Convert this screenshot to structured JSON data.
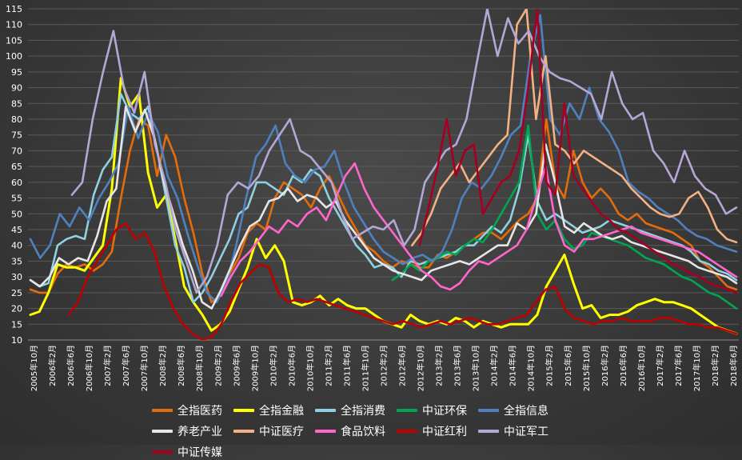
{
  "chart_data": {
    "type": "line",
    "title": "",
    "xlabel": "",
    "ylabel": "",
    "ylim": [
      10,
      115
    ],
    "yticks": [
      10,
      15,
      20,
      25,
      30,
      35,
      40,
      45,
      50,
      55,
      60,
      65,
      70,
      75,
      80,
      85,
      90,
      95,
      100,
      105,
      110,
      115
    ],
    "xticks": [
      "2005年10月",
      "2006年2月",
      "2006年6月",
      "2006年10月",
      "2007年2月",
      "2007年6月",
      "2007年10月",
      "2008年2月",
      "2008年6月",
      "2008年10月",
      "2009年2月",
      "2009年6月",
      "2009年10月",
      "2010年2月",
      "2010年6月",
      "2010年10月",
      "2011年2月",
      "2011年6月",
      "2011年10月",
      "2012年2月",
      "2012年6月",
      "2012年10月",
      "2013年2月",
      "2013年6月",
      "2013年10月",
      "2014年2月",
      "2014年6月",
      "2014年10月",
      "2015年2月",
      "2015年6月",
      "2015年10月",
      "2016年2月",
      "2016年6月",
      "2016年10月",
      "2017年2月",
      "2017年6月",
      "2017年10月",
      "2018年2月",
      "2018年6月"
    ],
    "grid": true,
    "legend_position": "bottom",
    "series": [
      {
        "name": "全指医药",
        "color": "#e46c0a",
        "values": [
          26,
          25,
          25,
          31,
          34,
          33,
          34,
          32,
          34,
          38,
          55,
          70,
          80,
          78,
          62,
          75,
          68,
          55,
          44,
          31,
          22,
          24,
          31,
          36,
          44,
          47,
          45,
          55,
          60,
          58,
          56,
          52,
          58,
          62,
          56,
          50,
          45,
          40,
          38,
          35,
          33,
          35,
          34,
          33,
          33,
          37,
          36,
          38,
          40,
          42,
          44,
          44,
          42,
          45,
          48,
          50,
          55,
          80,
          60,
          55,
          70,
          60,
          55,
          58,
          55,
          50,
          48,
          50,
          47,
          46,
          45,
          44,
          42,
          40,
          35,
          33,
          30,
          27,
          26
        ]
      },
      {
        "name": "全指金融",
        "color": "#ffff00",
        "values": [
          18,
          19,
          25,
          34,
          33,
          33,
          32,
          36,
          40,
          58,
          93,
          84,
          88,
          63,
          52,
          56,
          42,
          27,
          22,
          18,
          13,
          15,
          19,
          26,
          33,
          42,
          36,
          40,
          35,
          22,
          21,
          22,
          24,
          21,
          23,
          21,
          20,
          20,
          18,
          16,
          15,
          14,
          18,
          16,
          15,
          16,
          15,
          17,
          16,
          14,
          16,
          15,
          14,
          15,
          15,
          15,
          18,
          27,
          32,
          37,
          28,
          20,
          21,
          17,
          18,
          18,
          19,
          21,
          22,
          23,
          22,
          22,
          21,
          20,
          18,
          16,
          14,
          13,
          12
        ]
      },
      {
        "name": "全指消费",
        "color": "#8fd1e0",
        "values": [
          29,
          27,
          28,
          40,
          42,
          43,
          42,
          56,
          64,
          68,
          88,
          82,
          80,
          84,
          70,
          55,
          40,
          33,
          22,
          25,
          30,
          36,
          42,
          50,
          52,
          60,
          60,
          58,
          56,
          62,
          60,
          64,
          62,
          55,
          50,
          45,
          40,
          37,
          33,
          34,
          33,
          30,
          35,
          34,
          35,
          36,
          37,
          38,
          40,
          40,
          43,
          46,
          44,
          48,
          58,
          75,
          54,
          48,
          50,
          48,
          46,
          44,
          45,
          46,
          48,
          47,
          46,
          45,
          44,
          43,
          42,
          41,
          40,
          38,
          35,
          34,
          32,
          31,
          29
        ]
      },
      {
        "name": "中证环保",
        "color": "#00a651",
        "values": [
          null,
          null,
          null,
          null,
          null,
          null,
          null,
          null,
          null,
          null,
          null,
          null,
          null,
          null,
          null,
          null,
          null,
          null,
          null,
          null,
          null,
          null,
          null,
          null,
          null,
          null,
          null,
          null,
          null,
          null,
          null,
          null,
          null,
          null,
          null,
          null,
          null,
          null,
          null,
          null,
          29,
          31,
          34,
          32,
          35,
          36,
          38,
          37,
          40,
          42,
          41,
          45,
          50,
          55,
          60,
          78,
          50,
          45,
          48,
          42,
          39,
          40,
          44,
          43,
          42,
          41,
          40,
          38,
          36,
          35,
          34,
          32,
          30,
          29,
          27,
          25,
          24,
          22,
          20
        ]
      },
      {
        "name": "全指信息",
        "color": "#4f81bd",
        "values": [
          42,
          36,
          40,
          50,
          46,
          52,
          48,
          55,
          60,
          66,
          84,
          74,
          82,
          76,
          62,
          55,
          44,
          34,
          25,
          22,
          28,
          40,
          55,
          68,
          72,
          78,
          66,
          62,
          60,
          64,
          65,
          70,
          60,
          52,
          47,
          42,
          38,
          36,
          34,
          36,
          37,
          35,
          38,
          45,
          55,
          60,
          58,
          62,
          68,
          75,
          78,
          100,
          113,
          80,
          75,
          85,
          80,
          90,
          80,
          76,
          70,
          60,
          57,
          55,
          52,
          50,
          48,
          45,
          43,
          42,
          40,
          39,
          38
        ]
      },
      {
        "name": "养老产业",
        "color": "#e6e6e6",
        "values": [
          29,
          27,
          30,
          36,
          34,
          36,
          35,
          43,
          54,
          58,
          84,
          76,
          83,
          74,
          60,
          50,
          40,
          32,
          22,
          20,
          26,
          33,
          40,
          46,
          48,
          54,
          55,
          58,
          54,
          56,
          55,
          52,
          54,
          48,
          44,
          40,
          36,
          34,
          32,
          31,
          30,
          29,
          32,
          33,
          34,
          35,
          34,
          36,
          38,
          40,
          40,
          47,
          45,
          50,
          72,
          60,
          46,
          44,
          47,
          45,
          43,
          42,
          43,
          41,
          40,
          39,
          38,
          37,
          36,
          35,
          33,
          32,
          31,
          30,
          28
        ]
      },
      {
        "name": "中证医疗",
        "color": "#f4b183",
        "values": [
          null,
          null,
          null,
          null,
          null,
          null,
          null,
          null,
          null,
          null,
          null,
          null,
          null,
          null,
          null,
          null,
          null,
          null,
          null,
          null,
          null,
          null,
          null,
          null,
          null,
          null,
          null,
          null,
          null,
          null,
          null,
          null,
          null,
          null,
          null,
          null,
          null,
          null,
          null,
          null,
          40,
          44,
          50,
          58,
          62,
          66,
          60,
          64,
          68,
          72,
          75,
          110,
          115,
          80,
          100,
          72,
          70,
          66,
          70,
          68,
          66,
          64,
          62,
          58,
          55,
          52,
          50,
          49,
          50,
          55,
          57,
          52,
          45,
          42,
          41
        ]
      },
      {
        "name": "食品饮料",
        "color": "#ff66cc",
        "values": [
          null,
          null,
          null,
          null,
          null,
          null,
          null,
          null,
          null,
          null,
          null,
          null,
          null,
          null,
          null,
          null,
          null,
          null,
          null,
          null,
          24,
          30,
          35,
          38,
          42,
          46,
          44,
          48,
          46,
          50,
          52,
          48,
          55,
          62,
          66,
          58,
          52,
          48,
          44,
          40,
          36,
          32,
          30,
          27,
          26,
          28,
          32,
          35,
          34,
          36,
          38,
          40,
          45,
          55,
          65,
          48,
          40,
          38,
          42,
          42,
          43,
          44,
          45,
          46,
          44,
          43,
          42,
          41,
          40,
          39,
          38,
          36,
          34,
          32,
          30
        ]
      },
      {
        "name": "中证红利",
        "color": "#c00000",
        "values": [
          null,
          null,
          null,
          null,
          18,
          22,
          30,
          35,
          40,
          45,
          47,
          42,
          44,
          38,
          27,
          20,
          15,
          12,
          10,
          11,
          15,
          22,
          28,
          31,
          34,
          33,
          25,
          22,
          23,
          22,
          23,
          22,
          21,
          20,
          19,
          18,
          17,
          16,
          15,
          16,
          15,
          14,
          15,
          16,
          15,
          16,
          17,
          16,
          15,
          15,
          16,
          17,
          18,
          22,
          26,
          27,
          20,
          17,
          16,
          15,
          16,
          16,
          17,
          16,
          16,
          16,
          17,
          17,
          16,
          15,
          15,
          14,
          14,
          13,
          12
        ]
      },
      {
        "name": "中证军工",
        "color": "#b4a7d6",
        "values": [
          null,
          null,
          null,
          null,
          56,
          60,
          80,
          95,
          108,
          90,
          82,
          95,
          72,
          60,
          45,
          35,
          25,
          30,
          40,
          56,
          60,
          58,
          62,
          70,
          75,
          80,
          70,
          68,
          64,
          60,
          50,
          42,
          44,
          46,
          45,
          48,
          40,
          45,
          60,
          65,
          70,
          72,
          80,
          98,
          115,
          100,
          112,
          104,
          108,
          100,
          95,
          93,
          92,
          90,
          88,
          80,
          95,
          85,
          80,
          82,
          70,
          66,
          60,
          70,
          62,
          58,
          56,
          50,
          52
        ]
      },
      {
        "name": "中证传媒",
        "color": "#a50021",
        "values": [
          null,
          null,
          null,
          null,
          null,
          null,
          null,
          null,
          null,
          null,
          null,
          null,
          null,
          null,
          null,
          null,
          null,
          null,
          null,
          null,
          null,
          null,
          null,
          null,
          null,
          null,
          null,
          null,
          null,
          null,
          null,
          null,
          null,
          null,
          null,
          null,
          null,
          null,
          null,
          null,
          null,
          null,
          null,
          40,
          52,
          65,
          80,
          62,
          70,
          72,
          50,
          55,
          60,
          62,
          70,
          90,
          115,
          60,
          56,
          85,
          62,
          58,
          54,
          50,
          48,
          45,
          44,
          42,
          40,
          38,
          36,
          34,
          33,
          31,
          30,
          28,
          27,
          26,
          25
        ]
      }
    ]
  },
  "legend": {
    "items": [
      {
        "label": "全指医药",
        "color": "#e46c0a"
      },
      {
        "label": "全指金融",
        "color": "#ffff00"
      },
      {
        "label": "全指消费",
        "color": "#8fd1e0"
      },
      {
        "label": "中证环保",
        "color": "#00a651"
      },
      {
        "label": "全指信息",
        "color": "#4f81bd"
      },
      {
        "label": "养老产业",
        "color": "#e6e6e6"
      },
      {
        "label": "中证医疗",
        "color": "#f4b183"
      },
      {
        "label": "食品饮料",
        "color": "#ff66cc"
      },
      {
        "label": "中证红利",
        "color": "#c00000"
      },
      {
        "label": "中证军工",
        "color": "#b4a7d6"
      },
      {
        "label": "中证传媒",
        "color": "#a50021"
      }
    ]
  }
}
